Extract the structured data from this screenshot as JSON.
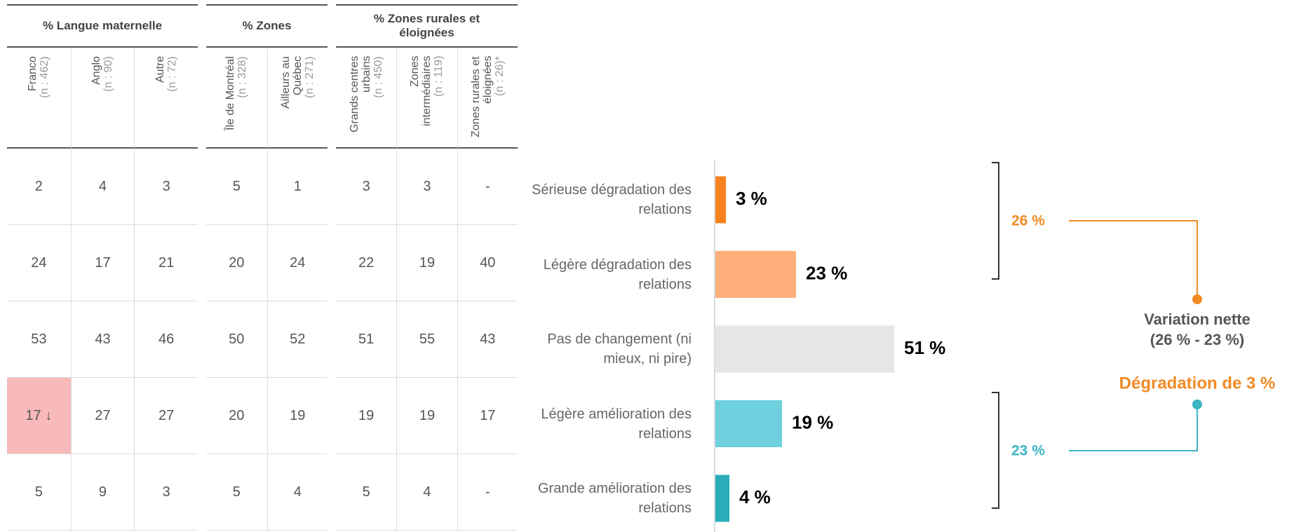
{
  "table": {
    "groups": [
      {
        "title": "% Langue maternelle",
        "columns": [
          {
            "label": "Franco",
            "n": "(n : 462)"
          },
          {
            "label": "Anglo",
            "n": "(n : 90)"
          },
          {
            "label": "Autre",
            "n": "(n : 72)"
          }
        ]
      },
      {
        "title": "% Zones",
        "columns": [
          {
            "label": "Île de Montréal",
            "n": "(n : 328)"
          },
          {
            "label": "Ailleurs au Québec",
            "n": "(n : 271)"
          }
        ]
      },
      {
        "title": "% Zones rurales et éloignées",
        "columns": [
          {
            "label": "Grands centres urbains",
            "n": "(n : 450)"
          },
          {
            "label": "Zones intermédiaires",
            "n": "(n : 119)"
          },
          {
            "label": "Zones rurales et éloignées",
            "n": "(n : 26)*"
          }
        ]
      }
    ],
    "highlight_color": "#f8b9ba",
    "rows": [
      [
        "2",
        "4",
        "3",
        "5",
        "1",
        "3",
        "3",
        "-"
      ],
      [
        "24",
        "17",
        "21",
        "20",
        "24",
        "22",
        "19",
        "40"
      ],
      [
        "53",
        "43",
        "46",
        "50",
        "52",
        "51",
        "55",
        "43"
      ],
      [
        {
          "text": "17 ↓",
          "highlight": true
        },
        "27",
        "27",
        "20",
        "19",
        "19",
        "19",
        "17"
      ],
      [
        "5",
        "9",
        "3",
        "5",
        "4",
        "5",
        "4",
        "-"
      ]
    ]
  },
  "chart_data": {
    "type": "bar",
    "orientation": "horizontal",
    "categories": [
      "Sérieuse dégradation des relations",
      "Légère dégradation des relations",
      "Pas de changement (ni mieux, ni pire)",
      "Légère amélioration des relations",
      "Grande amélioration des relations"
    ],
    "values": [
      3,
      23,
      51,
      19,
      4
    ],
    "value_labels": [
      "3 %",
      "23 %",
      "51 %",
      "19 %",
      "4 %"
    ],
    "colors": [
      "#f5821f",
      "#ffb07a",
      "#e6e6e6",
      "#6dd0dc",
      "#2aadb9"
    ]
  },
  "annotations": {
    "top_sum": {
      "text": "26 %",
      "color": "#f08a24"
    },
    "bottom_sum": {
      "text": "23 %",
      "color": "#3bb5c4"
    },
    "net_title": "Variation nette",
    "net_formula": "(26 % - 23 %)",
    "net_result": {
      "text": "Dégradation de 3 %",
      "color": "#f08a24"
    }
  }
}
